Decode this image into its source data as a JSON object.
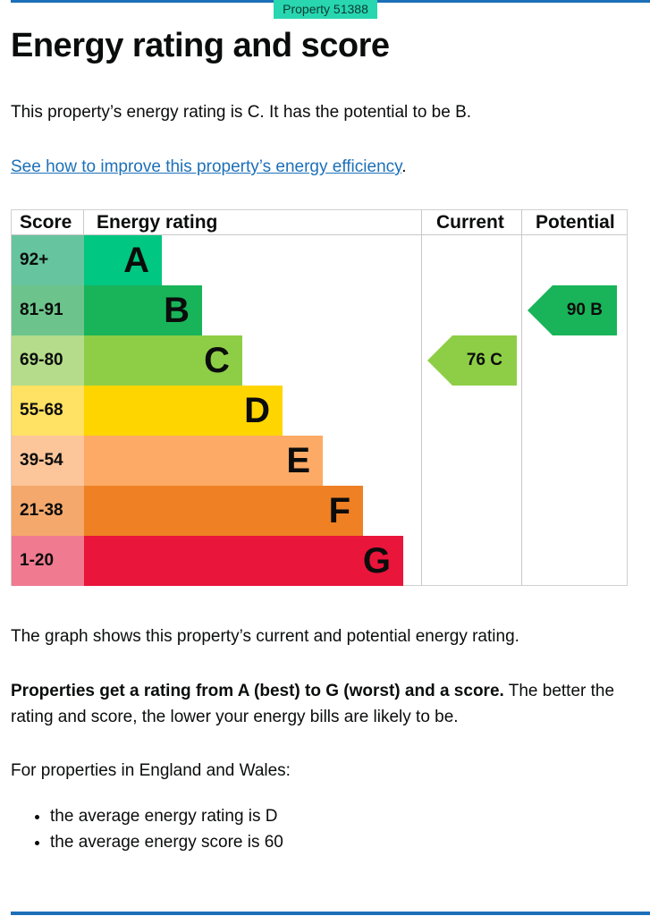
{
  "badge": "Property 51388",
  "title": "Energy rating and score",
  "summary": "This property’s energy rating is C. It has the potential to be B.",
  "link": {
    "text": "See how to improve this property’s energy efficiency",
    "suffix": "."
  },
  "chart_data": {
    "type": "table",
    "headers": {
      "score": "Score",
      "rating": "Energy rating",
      "current": "Current",
      "potential": "Potential"
    },
    "bands": [
      {
        "score": "92+",
        "letter": "A",
        "color": "#00c781",
        "light": "#66c49e"
      },
      {
        "score": "81-91",
        "letter": "B",
        "color": "#19b459",
        "light": "#6cc48c"
      },
      {
        "score": "69-80",
        "letter": "C",
        "color": "#8dce46",
        "light": "#b4dc8a"
      },
      {
        "score": "55-68",
        "letter": "D",
        "color": "#ffd500",
        "light": "#ffe163"
      },
      {
        "score": "39-54",
        "letter": "E",
        "color": "#fcaa65",
        "light": "#fdc69a"
      },
      {
        "score": "21-38",
        "letter": "F",
        "color": "#ef8023",
        "light": "#f4a86b"
      },
      {
        "score": "1-20",
        "letter": "G",
        "color": "#e9153b",
        "light": "#f07a90"
      }
    ],
    "current": {
      "label": "76 C",
      "score": 76,
      "band": "C",
      "color": "#8dce46"
    },
    "potential": {
      "label": "90 B",
      "score": 90,
      "band": "B",
      "color": "#19b459"
    }
  },
  "graph_note": "The graph shows this property’s current and potential energy rating.",
  "ratings_bold": "Properties get a rating from A (best) to G (worst) and a score.",
  "ratings_rest": " The better the rating and score, the lower your energy bills are likely to be.",
  "region_intro": "For properties in England and Wales:",
  "averages": [
    "the average energy rating is D",
    "the average energy score is 60"
  ]
}
